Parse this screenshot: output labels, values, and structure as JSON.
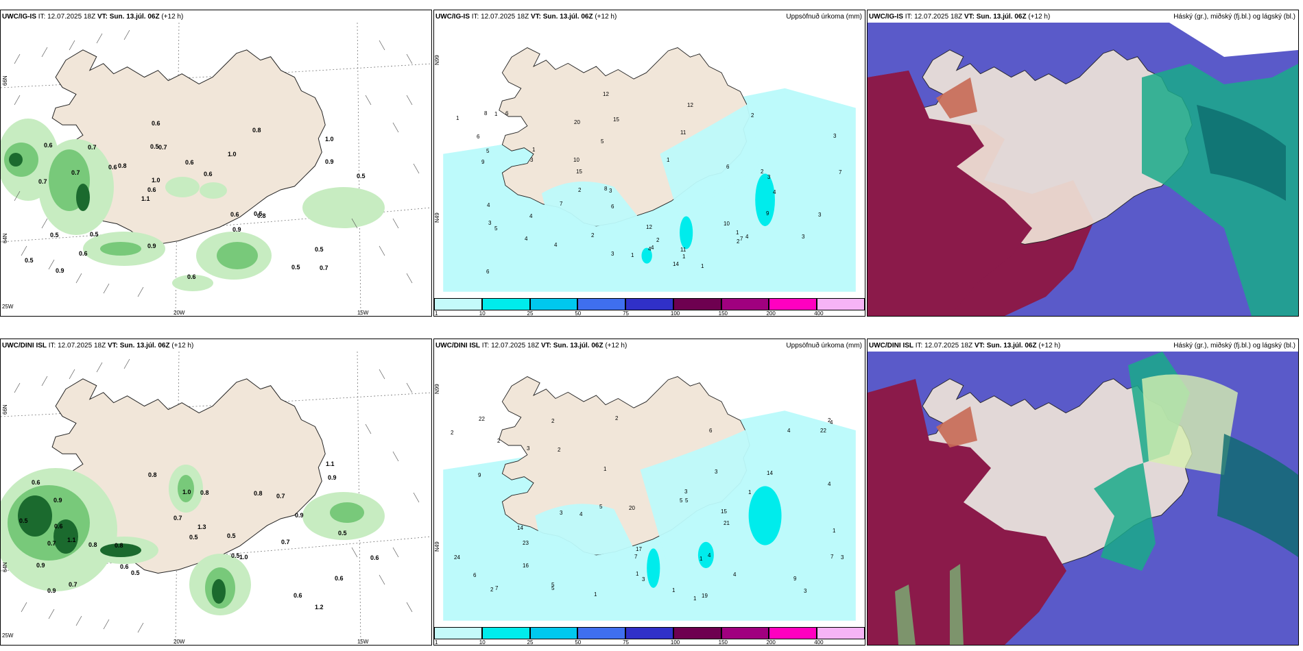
{
  "rows": [
    {
      "model": "UWC/IG-IS",
      "it_prefix": "IT:",
      "it": "12.07.2025 18Z",
      "vt_prefix": "VT:",
      "vt": "Sun. 13.júl. 06Z",
      "lead": "(+12 h)",
      "wind_values": [
        "0.7",
        "0.7",
        "1.0",
        "1.1",
        "1.0",
        "0.9",
        "0.5",
        "0.6",
        "0.5",
        "0.8",
        "0.5",
        "0.6",
        "0.7",
        "0.6",
        "0.8",
        "0.6",
        "0.6",
        "0.5",
        "0.6",
        "0.9",
        "0.6",
        "0.9",
        "1.0",
        "0.7",
        "0.8",
        "0.5",
        "0.5",
        "0.5",
        "0.5",
        "0.6",
        "0.6",
        "0.7",
        "0.9"
      ],
      "precip_values": [
        "3",
        "2",
        "1",
        "1",
        "7",
        "5",
        "4",
        "4",
        "2",
        "1",
        "4",
        "3",
        "1",
        "1",
        "2",
        "1",
        "1",
        "7",
        "3",
        "3",
        "6",
        "4",
        "3",
        "15",
        "11",
        "4",
        "12",
        "14",
        "20",
        "10",
        "8",
        "10",
        "9",
        "12",
        "2",
        "5",
        "1",
        "4",
        "3",
        "7",
        "6",
        "4",
        "2",
        "3",
        "9",
        "11",
        "5",
        "6",
        "12",
        "15",
        "4",
        "6",
        "8",
        "6",
        "3",
        "2"
      ]
    },
    {
      "model": "UWC/DINI ISL",
      "it_prefix": "IT:",
      "it": "12.07.2025 18Z",
      "vt_prefix": "VT:",
      "vt": "Sun. 13.júl. 06Z",
      "lead": "(+12 h)",
      "wind_values": [
        "1.2",
        "1.1",
        "0.5",
        "0.6",
        "0.6",
        "0.9",
        "0.7",
        "0.8",
        "0.7",
        "1.0",
        "0.8",
        "0.6",
        "0.5",
        "0.8",
        "0.5",
        "0.9",
        "0.7",
        "1.3",
        "0.5",
        "0.9",
        "1.1",
        "0.8",
        "0.9",
        "0.6",
        "0.5",
        "0.6",
        "0.8",
        "0.5",
        "0.7",
        "0.9",
        "1.0",
        "0.7",
        "0.6"
      ],
      "precip_values": [
        "1",
        "1",
        "5",
        "4",
        "2",
        "2",
        "3",
        "3",
        "2",
        "1",
        "4",
        "3",
        "5",
        "7",
        "6",
        "5",
        "9",
        "5",
        "4",
        "2",
        "1",
        "4",
        "3",
        "2",
        "14",
        "14",
        "24",
        "23",
        "22",
        "21",
        "20",
        "19",
        "17",
        "22",
        "16",
        "15",
        "7",
        "6",
        "3",
        "9",
        "5",
        "1",
        "3",
        "7",
        "2",
        "4",
        "1",
        "1",
        "3",
        "1",
        "2",
        "4"
      ]
    }
  ],
  "precip_title": "Uppsöfnuð úrkoma (mm)",
  "cloud_title": "Háský (gr.), miðský (fj.bl.) og lágský (bl.)",
  "colorbar": {
    "labels": [
      "1",
      "10",
      "25",
      "50",
      "75",
      "100",
      "150",
      "200",
      "400"
    ],
    "colors": [
      "#c4fafa",
      "#00ecec",
      "#00c8ee",
      "#3f6fef",
      "#3030c8",
      "#6e0050",
      "#a0007f",
      "#ff00c0",
      "#f6b4f6"
    ]
  },
  "axis": {
    "lat_labels": [
      "66N",
      "64N",
      "N99",
      "N49"
    ],
    "lon_labels": [
      "25W",
      "20W",
      "15W"
    ]
  },
  "colors": {
    "land": "#f1e6d9",
    "sea_precip": "#bdfafb",
    "cloud_high": "#8b1a4a",
    "cloud_mid": "#5a5ac9",
    "cloud_low": "#1aaa8a",
    "wind_green_light": "#c7ecc1",
    "wind_green_mid": "#78c97a",
    "wind_green_dark": "#1b6a2e"
  }
}
